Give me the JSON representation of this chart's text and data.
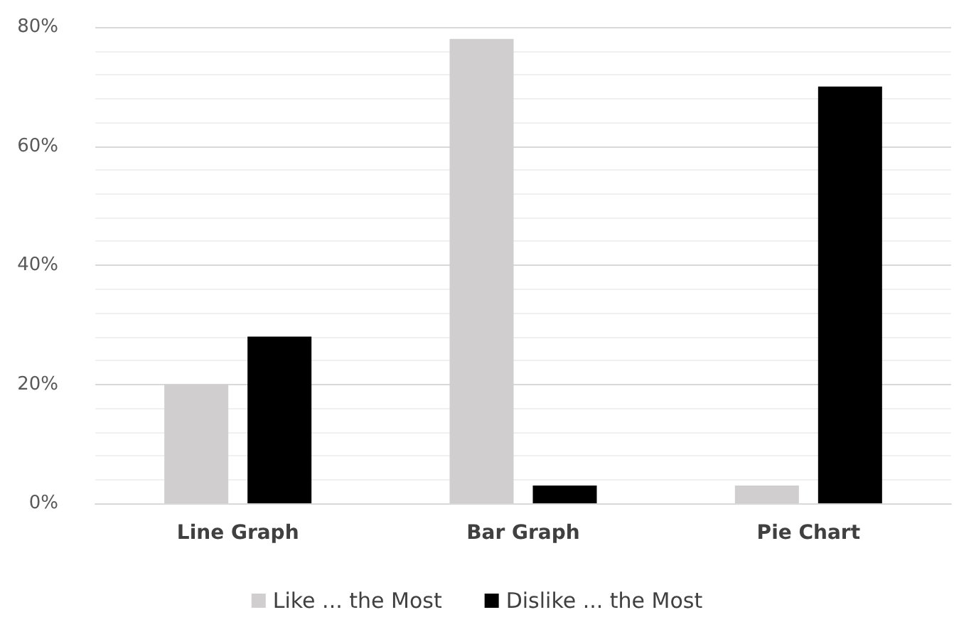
{
  "chart_data": {
    "type": "bar",
    "categories": [
      "Line Graph",
      "Bar Graph",
      "Pie Chart"
    ],
    "series": [
      {
        "name": "Like ... the Most",
        "color": "#d0cece",
        "values": [
          20,
          78,
          3
        ]
      },
      {
        "name": "Dislike ... the Most",
        "color": "#000000",
        "values": [
          28,
          3,
          70
        ]
      }
    ],
    "ylim": [
      0,
      80
    ],
    "yticks": [
      {
        "value": 0,
        "label": "0%"
      },
      {
        "value": 20,
        "label": "20%"
      },
      {
        "value": 40,
        "label": "40%"
      },
      {
        "value": 60,
        "label": "60%"
      },
      {
        "value": 80,
        "label": "80%"
      }
    ],
    "grid": "y",
    "legend": "bottom"
  }
}
